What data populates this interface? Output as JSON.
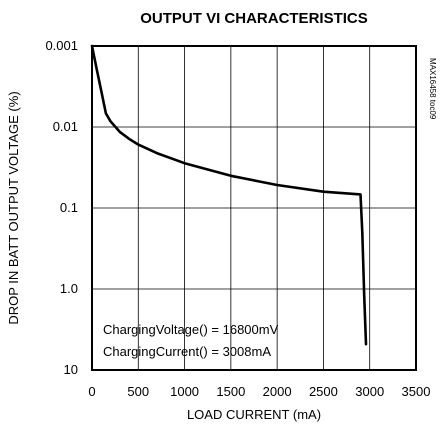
{
  "chart_data": {
    "type": "line",
    "title": "OUTPUT VI CHARACTERISTICS",
    "xlabel": "LOAD CURRENT (mA)",
    "ylabel": "DROP IN BATT OUTPUT VOLTAGE (%)",
    "x_range": [
      0,
      3500
    ],
    "x_ticks": [
      0,
      500,
      1000,
      1500,
      2000,
      2500,
      3000,
      3500
    ],
    "x_tick_labels": [
      "0",
      "500",
      "1000",
      "1500",
      "2000",
      "2500",
      "3000",
      "3500"
    ],
    "y_scale": "log",
    "y_inverted": true,
    "y_range": [
      0.001,
      10
    ],
    "y_ticks": [
      0.001,
      0.01,
      0.1,
      1.0,
      10
    ],
    "y_tick_labels": [
      "0.001",
      "0.01",
      "0.1",
      "1.0",
      "10"
    ],
    "grid": true,
    "series": [
      {
        "x": [
          0,
          50,
          100,
          150,
          200,
          300,
          400,
          500,
          700,
          1000,
          1500,
          2000,
          2500,
          2900,
          2920,
          2940,
          2960
        ],
        "y": [
          0.001,
          0.0019,
          0.0036,
          0.0068,
          0.0085,
          0.0115,
          0.014,
          0.0165,
          0.021,
          0.028,
          0.04,
          0.052,
          0.063,
          0.068,
          0.2,
          1.2,
          4.8
        ]
      }
    ],
    "annotations": [
      "ChargingVoltage() = 16800mV",
      "ChargingCurrent() = 3008mA"
    ],
    "figure_ref": "MAX16458 toc09"
  }
}
